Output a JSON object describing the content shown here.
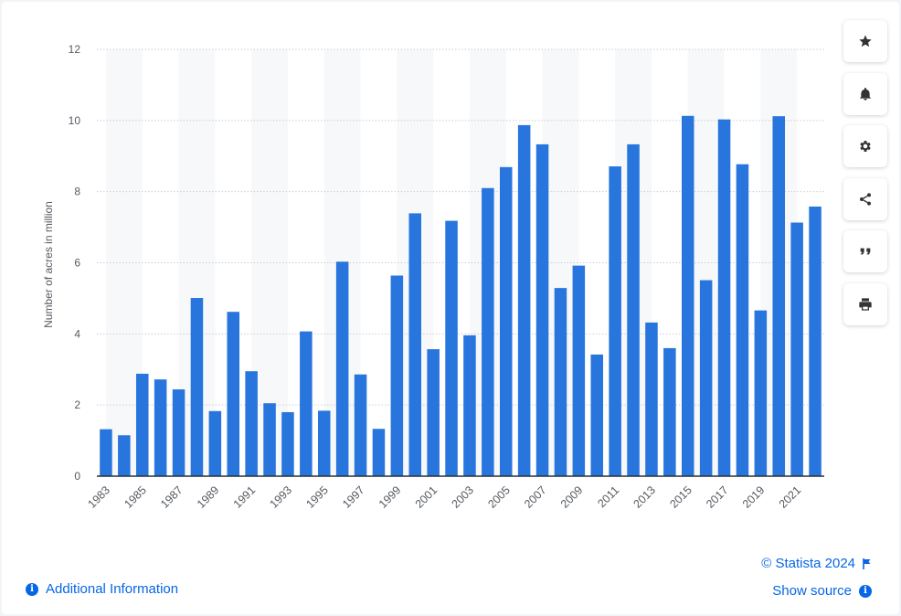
{
  "chart_data": {
    "type": "bar",
    "ylabel": "Number of acres in million",
    "xlabel": "",
    "ylim": [
      0,
      12
    ],
    "yticks": [
      0,
      2,
      4,
      6,
      8,
      10,
      12
    ],
    "grid": true,
    "categories": [
      "1983",
      "1984",
      "1985",
      "1986",
      "1987",
      "1988",
      "1989",
      "1990",
      "1991",
      "1992",
      "1993",
      "1994",
      "1995",
      "1996",
      "1997",
      "1998",
      "1999",
      "2000",
      "2001",
      "2002",
      "2003",
      "2004",
      "2005",
      "2006",
      "2007",
      "2008",
      "2009",
      "2010",
      "2011",
      "2012",
      "2013",
      "2014",
      "2015",
      "2016",
      "2017",
      "2018",
      "2019",
      "2020",
      "2021",
      "2022"
    ],
    "tick_labels": [
      "1983",
      "1985",
      "1987",
      "1989",
      "1991",
      "1993",
      "1995",
      "1997",
      "1999",
      "2001",
      "2003",
      "2005",
      "2007",
      "2009",
      "2011",
      "2013",
      "2015",
      "2017",
      "2019",
      "2021"
    ],
    "values": [
      1.32,
      1.15,
      2.88,
      2.72,
      2.44,
      5.01,
      1.83,
      4.62,
      2.95,
      2.05,
      1.8,
      4.07,
      1.84,
      6.03,
      2.86,
      1.33,
      5.64,
      7.39,
      3.57,
      7.18,
      3.96,
      8.1,
      8.69,
      9.87,
      9.33,
      5.29,
      5.92,
      3.42,
      8.71,
      9.33,
      4.32,
      3.6,
      10.13,
      5.51,
      10.03,
      8.77,
      4.66,
      10.12,
      7.13,
      7.58
    ],
    "bar_color": "#2876dd"
  },
  "toolbar": {
    "buttons": [
      "star-icon",
      "bell-icon",
      "gear-icon",
      "share-icon",
      "quote-icon",
      "print-icon"
    ]
  },
  "footer": {
    "additional_info": "Additional Information",
    "credit": "© Statista 2024",
    "show_source": "Show source"
  },
  "colors": {
    "accent": "#0666e5",
    "bar": "#2876dd",
    "band": "#f7f8fa"
  }
}
